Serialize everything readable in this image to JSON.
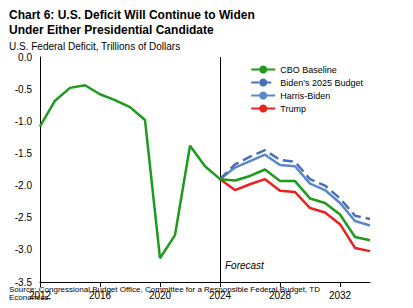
{
  "chart_data": {
    "type": "line",
    "title": "Chart 6: U.S. Deficit Will Continue to Widen Under Either Presidential Candidate",
    "subtitle": "U.S. Federal Deficit, Trillions of Dollars",
    "source": "Source: Congressional Budget Office, Committee for a Responsible Federal Budget, TD Economics.",
    "x": [
      2012,
      2013,
      2014,
      2015,
      2016,
      2017,
      2018,
      2019,
      2020,
      2021,
      2022,
      2023,
      2024,
      2025,
      2026,
      2027,
      2028,
      2029,
      2030,
      2031,
      2032,
      2033,
      2034
    ],
    "series": [
      {
        "name": "CBO Baseline",
        "color": "#1e9a1e",
        "line_style": "solid",
        "values": [
          -1.08,
          -0.68,
          -0.48,
          -0.44,
          -0.58,
          -0.67,
          -0.78,
          -0.98,
          -3.13,
          -2.77,
          -1.38,
          -1.7,
          -1.9,
          -1.92,
          -1.85,
          -1.75,
          -1.93,
          -1.93,
          -2.2,
          -2.27,
          -2.45,
          -2.8,
          -2.85
        ]
      },
      {
        "name": "Biden's 2025 Budget",
        "color": "#4a6fb5",
        "line_style": "dashed",
        "values": [
          null,
          null,
          null,
          null,
          null,
          null,
          null,
          null,
          null,
          null,
          null,
          null,
          -1.9,
          -1.67,
          -1.55,
          -1.45,
          -1.6,
          -1.63,
          -1.9,
          -2.0,
          -2.2,
          -2.47,
          -2.52
        ]
      },
      {
        "name": "Harris-Biden",
        "color": "#5b86c8",
        "line_style": "solid",
        "values": [
          null,
          null,
          null,
          null,
          null,
          null,
          null,
          null,
          null,
          null,
          null,
          null,
          -1.9,
          -1.72,
          -1.62,
          -1.52,
          -1.68,
          -1.7,
          -1.97,
          -2.07,
          -2.27,
          -2.55,
          -2.62
        ]
      },
      {
        "name": "Trump",
        "color": "#e8231f",
        "line_style": "solid",
        "values": [
          null,
          null,
          null,
          null,
          null,
          null,
          null,
          null,
          null,
          null,
          null,
          null,
          -1.9,
          -2.07,
          -1.98,
          -1.9,
          -2.08,
          -2.1,
          -2.35,
          -2.42,
          -2.6,
          -2.97,
          -3.02
        ]
      }
    ],
    "xlim": [
      2012,
      2034
    ],
    "xticks": [
      2012,
      2016,
      2020,
      2024,
      2028,
      2032
    ],
    "ylim": [
      -3.5,
      0
    ],
    "yticks": [
      {
        "value": -3.5,
        "label": "-3.5"
      },
      {
        "value": -3,
        "label": "-3.0"
      },
      {
        "value": -2.5,
        "label": "-2.5"
      },
      {
        "value": -2,
        "label": "-2.0"
      },
      {
        "value": -1.5,
        "label": "-1.5"
      },
      {
        "value": -1,
        "label": "-1.0"
      },
      {
        "value": -0.5,
        "label": "-0.5"
      },
      {
        "value": 0,
        "label": "0.0"
      }
    ],
    "annotations": [
      {
        "text": "Forecast",
        "x": 2024
      }
    ],
    "grid": false,
    "legend": "top-right"
  }
}
